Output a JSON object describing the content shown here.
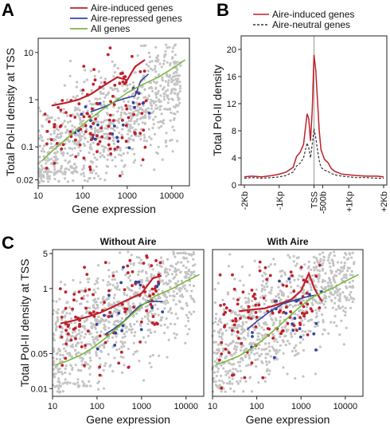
{
  "panel_labels": {
    "a": "A",
    "b": "B",
    "c": "C"
  },
  "colors": {
    "induced": "#c0202a",
    "repressed": "#3444a0",
    "all": "#7ab83e",
    "gray_points": "#c4c4c4",
    "neutral": "#333333"
  },
  "chart_data": [
    {
      "id": "A",
      "type": "scatter",
      "title": "",
      "xlabel": "Gene expression",
      "ylabel": "Total Pol-II density at TSS",
      "x_scale": "log",
      "y_scale": "log",
      "xlim": [
        10,
        25000
      ],
      "ylim": [
        0.015,
        20
      ],
      "xticks": [
        "10",
        "100",
        "1000",
        "10000"
      ],
      "yticks": [
        "0.02",
        "0.1",
        "1",
        "10"
      ],
      "legend": {
        "position": "top",
        "entries": [
          "Aire-induced genes",
          "Aire-repressed genes",
          "All genes"
        ]
      },
      "series": [
        {
          "name": "Aire-induced genes",
          "x": [
            20,
            40,
            80,
            150,
            300,
            600,
            1000,
            1500,
            2500
          ],
          "y": [
            0.75,
            0.85,
            1.0,
            1.3,
            2.0,
            3.0,
            2.6,
            5.0,
            7.0
          ]
        },
        {
          "name": "Aire-repressed genes",
          "x": [
            150,
            300,
            600,
            1000,
            1500,
            2000,
            3000
          ],
          "y": [
            0.55,
            0.7,
            0.95,
            1.1,
            1.2,
            2.5,
            3.5
          ]
        },
        {
          "name": "All genes",
          "x": [
            12,
            20,
            40,
            80,
            150,
            300,
            600,
            1000,
            2000,
            5000,
            10000,
            20000
          ],
          "y": [
            0.05,
            0.08,
            0.14,
            0.25,
            0.4,
            0.65,
            1.0,
            1.4,
            2.0,
            3.0,
            4.5,
            7.0
          ]
        }
      ]
    },
    {
      "id": "B",
      "type": "line",
      "title": "",
      "xlabel": "",
      "ylabel": "Total Pol-II density",
      "xlim": [
        -2000,
        2000
      ],
      "ylim": [
        0,
        22
      ],
      "xticks": [
        "-2Kb",
        "-1Kp",
        "TSS",
        "-500b",
        "+1Kp",
        "+2Kb"
      ],
      "yticks": [
        "0",
        "4",
        "8",
        "12",
        "16",
        "20"
      ],
      "legend": {
        "position": "top-right",
        "entries": [
          "Aire-induced genes",
          "Aire-neutral genes"
        ]
      },
      "series": [
        {
          "name": "Aire-induced genes",
          "x": [
            -2000,
            -1800,
            -1500,
            -1200,
            -1000,
            -800,
            -600,
            -500,
            -400,
            -300,
            -200,
            -150,
            -100,
            -50,
            0,
            50,
            100,
            150,
            200,
            300,
            400,
            500,
            600,
            800,
            1000,
            1200,
            1500,
            1800,
            2000
          ],
          "y": [
            1.2,
            1.3,
            1.2,
            1.4,
            1.6,
            1.9,
            2.6,
            4.2,
            4.8,
            6.0,
            10.5,
            9.8,
            6.5,
            11.0,
            19.2,
            17.0,
            12.5,
            8.0,
            5.2,
            3.8,
            3.3,
            2.4,
            2.0,
            1.6,
            1.5,
            1.4,
            1.3,
            1.3,
            1.2
          ]
        },
        {
          "name": "Aire-neutral genes",
          "x": [
            -2000,
            -1800,
            -1500,
            -1200,
            -1000,
            -800,
            -600,
            -500,
            -400,
            -300,
            -200,
            -150,
            -100,
            -50,
            0,
            50,
            100,
            150,
            200,
            300,
            400,
            500,
            600,
            800,
            1000,
            1200,
            1500,
            1800,
            2000
          ],
          "y": [
            1.0,
            1.1,
            1.0,
            1.1,
            1.2,
            1.4,
            1.9,
            2.8,
            3.2,
            4.0,
            6.2,
            5.5,
            4.0,
            6.0,
            8.3,
            7.0,
            5.2,
            3.6,
            2.6,
            2.2,
            2.0,
            1.7,
            1.5,
            1.3,
            1.2,
            1.1,
            1.1,
            1.0,
            1.0
          ]
        }
      ]
    },
    {
      "id": "C1",
      "type": "scatter",
      "title": "Without Aire",
      "xlabel": "Gene expression",
      "ylabel": "Total Pol-II density at TSS",
      "x_scale": "log",
      "y_scale": "log",
      "xlim": [
        10,
        25000
      ],
      "ylim": [
        0.007,
        6
      ],
      "xticks": [
        "10",
        "100",
        "1000",
        "10000"
      ],
      "yticks": [
        "0.01",
        "0.05",
        "1",
        "5"
      ],
      "series": [
        {
          "name": "Aire-induced genes",
          "x": [
            15,
            30,
            60,
            120,
            250,
            500,
            1000,
            1800,
            2800
          ],
          "y": [
            0.2,
            0.23,
            0.27,
            0.33,
            0.45,
            0.6,
            0.8,
            1.6,
            1.8
          ]
        },
        {
          "name": "Aire-repressed genes",
          "x": [
            150,
            250,
            400,
            600,
            900,
            1500,
            3000
          ],
          "y": [
            0.12,
            0.16,
            0.22,
            0.32,
            0.45,
            0.55,
            0.55
          ]
        },
        {
          "name": "All genes",
          "x": [
            12,
            20,
            40,
            80,
            150,
            300,
            600,
            1000,
            2000,
            5000,
            10000,
            20000
          ],
          "y": [
            0.03,
            0.035,
            0.045,
            0.065,
            0.1,
            0.17,
            0.3,
            0.45,
            0.7,
            1.0,
            1.4,
            1.9
          ]
        }
      ]
    },
    {
      "id": "C2",
      "type": "scatter",
      "title": "With Aire",
      "xlabel": "Gene expression",
      "ylabel": "",
      "x_scale": "log",
      "y_scale": "log",
      "xlim": [
        10,
        25000
      ],
      "ylim": [
        0.007,
        6
      ],
      "xticks": [
        "10",
        "100",
        "1000",
        "10000"
      ],
      "yticks": [],
      "series": [
        {
          "name": "Aire-induced genes",
          "x": [
            40,
            80,
            150,
            300,
            600,
            1000,
            1500,
            2000,
            2500,
            3000
          ],
          "y": [
            0.35,
            0.38,
            0.4,
            0.48,
            0.6,
            0.9,
            2.0,
            1.0,
            0.7,
            0.55
          ]
        },
        {
          "name": "Aire-repressed genes",
          "x": [
            60,
            100,
            200,
            400,
            800,
            1500,
            2500
          ],
          "y": [
            0.15,
            0.22,
            0.35,
            0.5,
            0.6,
            0.7,
            0.75
          ]
        },
        {
          "name": "All genes",
          "x": [
            12,
            20,
            40,
            80,
            150,
            300,
            600,
            1000,
            2000,
            5000,
            10000,
            20000
          ],
          "y": [
            0.03,
            0.035,
            0.045,
            0.065,
            0.1,
            0.17,
            0.3,
            0.45,
            0.7,
            1.0,
            1.4,
            1.9
          ]
        }
      ]
    }
  ]
}
